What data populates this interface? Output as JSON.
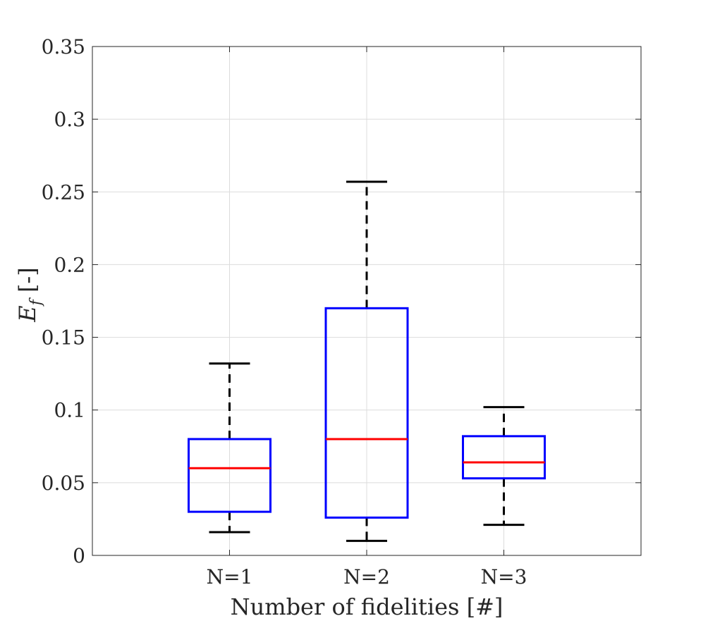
{
  "chart_data": {
    "type": "boxplot",
    "title": "",
    "xlabel": "Number of fidelities [#]",
    "ylabel_main": "E",
    "ylabel_sub": "f",
    "ylabel_unit": " [-]",
    "ylim": [
      0,
      0.35
    ],
    "yticks": [
      0,
      0.05,
      0.1,
      0.15,
      0.2,
      0.25,
      0.3,
      0.35
    ],
    "ytick_labels": [
      "0",
      "0.05",
      "0.1",
      "0.15",
      "0.2",
      "0.25",
      "0.3",
      "0.35"
    ],
    "categories": [
      "N=1",
      "N=2",
      "N=3"
    ],
    "grid": true,
    "boxes": [
      {
        "label": "N=1",
        "whisker_low": 0.016,
        "q1": 0.03,
        "median": 0.06,
        "q3": 0.08,
        "whisker_high": 0.132
      },
      {
        "label": "N=2",
        "whisker_low": 0.01,
        "q1": 0.026,
        "median": 0.08,
        "q3": 0.17,
        "whisker_high": 0.257
      },
      {
        "label": "N=3",
        "whisker_low": 0.021,
        "q1": 0.053,
        "median": 0.064,
        "q3": 0.082,
        "whisker_high": 0.102
      }
    ],
    "colors": {
      "box": "#0000ff",
      "median": "#ff0000",
      "whisker": "#000000",
      "grid": "#dcdcdc",
      "axis": "#262626"
    }
  }
}
